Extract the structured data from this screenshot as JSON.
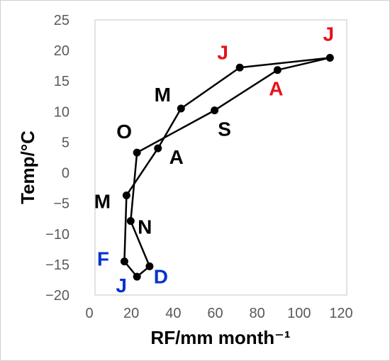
{
  "chart_data": {
    "type": "line",
    "title": "",
    "xlabel": "RF/mm month⁻¹",
    "ylabel": "Temp/°C",
    "xlim": [
      0,
      120
    ],
    "ylim": [
      -20,
      25
    ],
    "x_ticks": [
      "0",
      "20",
      "40",
      "60",
      "80",
      "100",
      "120"
    ],
    "y_ticks": [
      "−20",
      "−15",
      "−10",
      "−5",
      "0",
      "5",
      "10",
      "15",
      "20",
      "25"
    ],
    "grid": false,
    "legend": "none",
    "closed_loop": true,
    "series": [
      {
        "color": "#000000",
        "points": [
          {
            "month": "J",
            "x": 20,
            "y": -17,
            "label_color": "#0033cc"
          },
          {
            "month": "F",
            "x": 14,
            "y": -14.5,
            "label_color": "#0033cc"
          },
          {
            "month": "M",
            "x": 15,
            "y": -3.7,
            "label_color": "#000000"
          },
          {
            "month": "A",
            "x": 30,
            "y": 4,
            "label_color": "#000000"
          },
          {
            "month": "M",
            "x": 41,
            "y": 10.5,
            "label_color": "#000000"
          },
          {
            "month": "J",
            "x": 69,
            "y": 17.2,
            "label_color": "#e8101a"
          },
          {
            "month": "J",
            "x": 112,
            "y": 18.8,
            "label_color": "#e8101a"
          },
          {
            "month": "A",
            "x": 87,
            "y": 16.8,
            "label_color": "#e8101a"
          },
          {
            "month": "S",
            "x": 57,
            "y": 10.2,
            "label_color": "#000000"
          },
          {
            "month": "O",
            "x": 20,
            "y": 3.3,
            "label_color": "#000000"
          },
          {
            "month": "N",
            "x": 17,
            "y": -7.9,
            "label_color": "#000000"
          },
          {
            "month": "D",
            "x": 26,
            "y": -15.3,
            "label_color": "#0033cc"
          }
        ]
      }
    ]
  }
}
